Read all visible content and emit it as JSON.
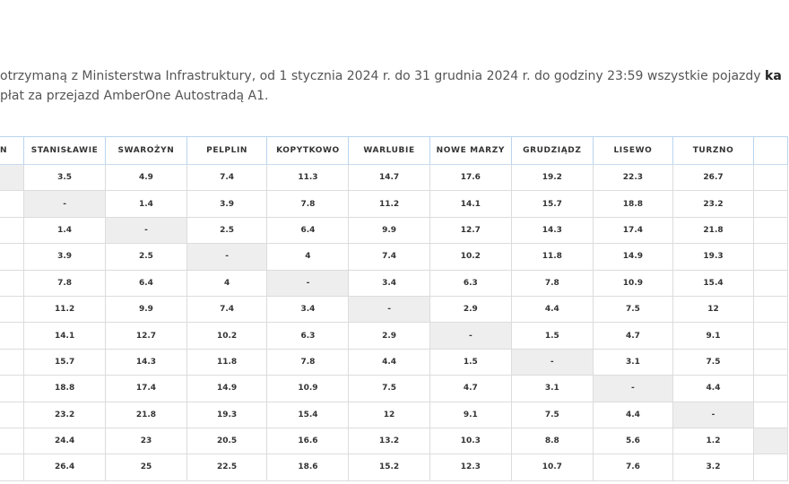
{
  "intro": {
    "line1": "otrzymaną z Ministerstwa Infrastruktury, od 1 stycznia 2024 r.  do 31 grudnia 2024 r. do godziny 23:59 wszystkie pojazdy",
    "line1_bold": "ka",
    "line2": "płat za przejazd AmberOne Autostradą A1."
  },
  "table": {
    "first_header": "N",
    "header": [
      "STANISŁAWIE",
      "SWAROŻYN",
      "PELPLIN",
      "KOPYTKOWO",
      "WARLUBIE",
      "NOWE MARZY",
      "GRUDZIĄDZ",
      "LISEWO",
      "TURZNO"
    ],
    "rows": [
      [
        "3.5",
        "4.9",
        "7.4",
        "11.3",
        "14.7",
        "17.6",
        "19.2",
        "22.3",
        "26.7"
      ],
      [
        "-",
        "1.4",
        "3.9",
        "7.8",
        "11.2",
        "14.1",
        "15.7",
        "18.8",
        "23.2"
      ],
      [
        "1.4",
        "-",
        "2.5",
        "6.4",
        "9.9",
        "12.7",
        "14.3",
        "17.4",
        "21.8"
      ],
      [
        "3.9",
        "2.5",
        "-",
        "4",
        "7.4",
        "10.2",
        "11.8",
        "14.9",
        "19.3"
      ],
      [
        "7.8",
        "6.4",
        "4",
        "-",
        "3.4",
        "6.3",
        "7.8",
        "10.9",
        "15.4"
      ],
      [
        "11.2",
        "9.9",
        "7.4",
        "3.4",
        "-",
        "2.9",
        "4.4",
        "7.5",
        "12"
      ],
      [
        "14.1",
        "12.7",
        "10.2",
        "6.3",
        "2.9",
        "-",
        "1.5",
        "4.7",
        "9.1"
      ],
      [
        "15.7",
        "14.3",
        "11.8",
        "7.8",
        "4.4",
        "1.5",
        "-",
        "3.1",
        "7.5"
      ],
      [
        "18.8",
        "17.4",
        "14.9",
        "10.9",
        "7.5",
        "4.7",
        "3.1",
        "-",
        "4.4"
      ],
      [
        "23.2",
        "21.8",
        "19.3",
        "15.4",
        "12",
        "9.1",
        "7.5",
        "4.4",
        "-"
      ],
      [
        "24.4",
        "23",
        "20.5",
        "16.6",
        "13.2",
        "10.3",
        "8.8",
        "5.6",
        "1.2"
      ],
      [
        "26.4",
        "25",
        "22.5",
        "18.6",
        "15.2",
        "12.3",
        "10.7",
        "7.6",
        "3.2"
      ]
    ]
  }
}
